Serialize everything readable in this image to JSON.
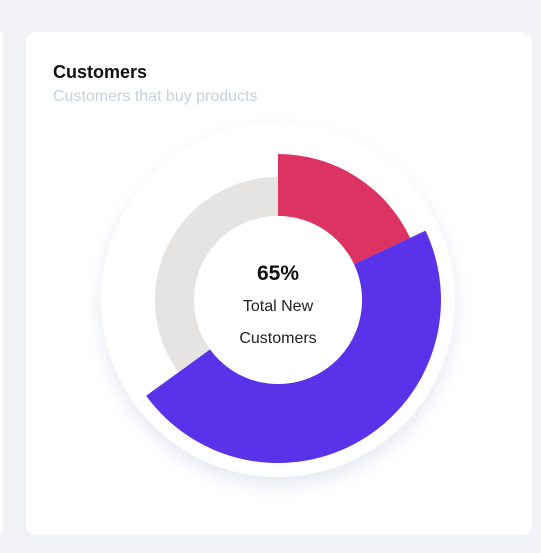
{
  "card": {
    "title": "Customers",
    "subtitle": "Customers that buy products"
  },
  "chart_data": {
    "type": "pie",
    "center_value": "65%",
    "center_label_line1": "Total New",
    "center_label_line2": "Customers",
    "series": [
      {
        "value": 18,
        "color": "#dc3362"
      },
      {
        "value": 47,
        "color": "#5a32ea"
      },
      {
        "value": 35,
        "color": "#e5e4e3"
      }
    ]
  }
}
